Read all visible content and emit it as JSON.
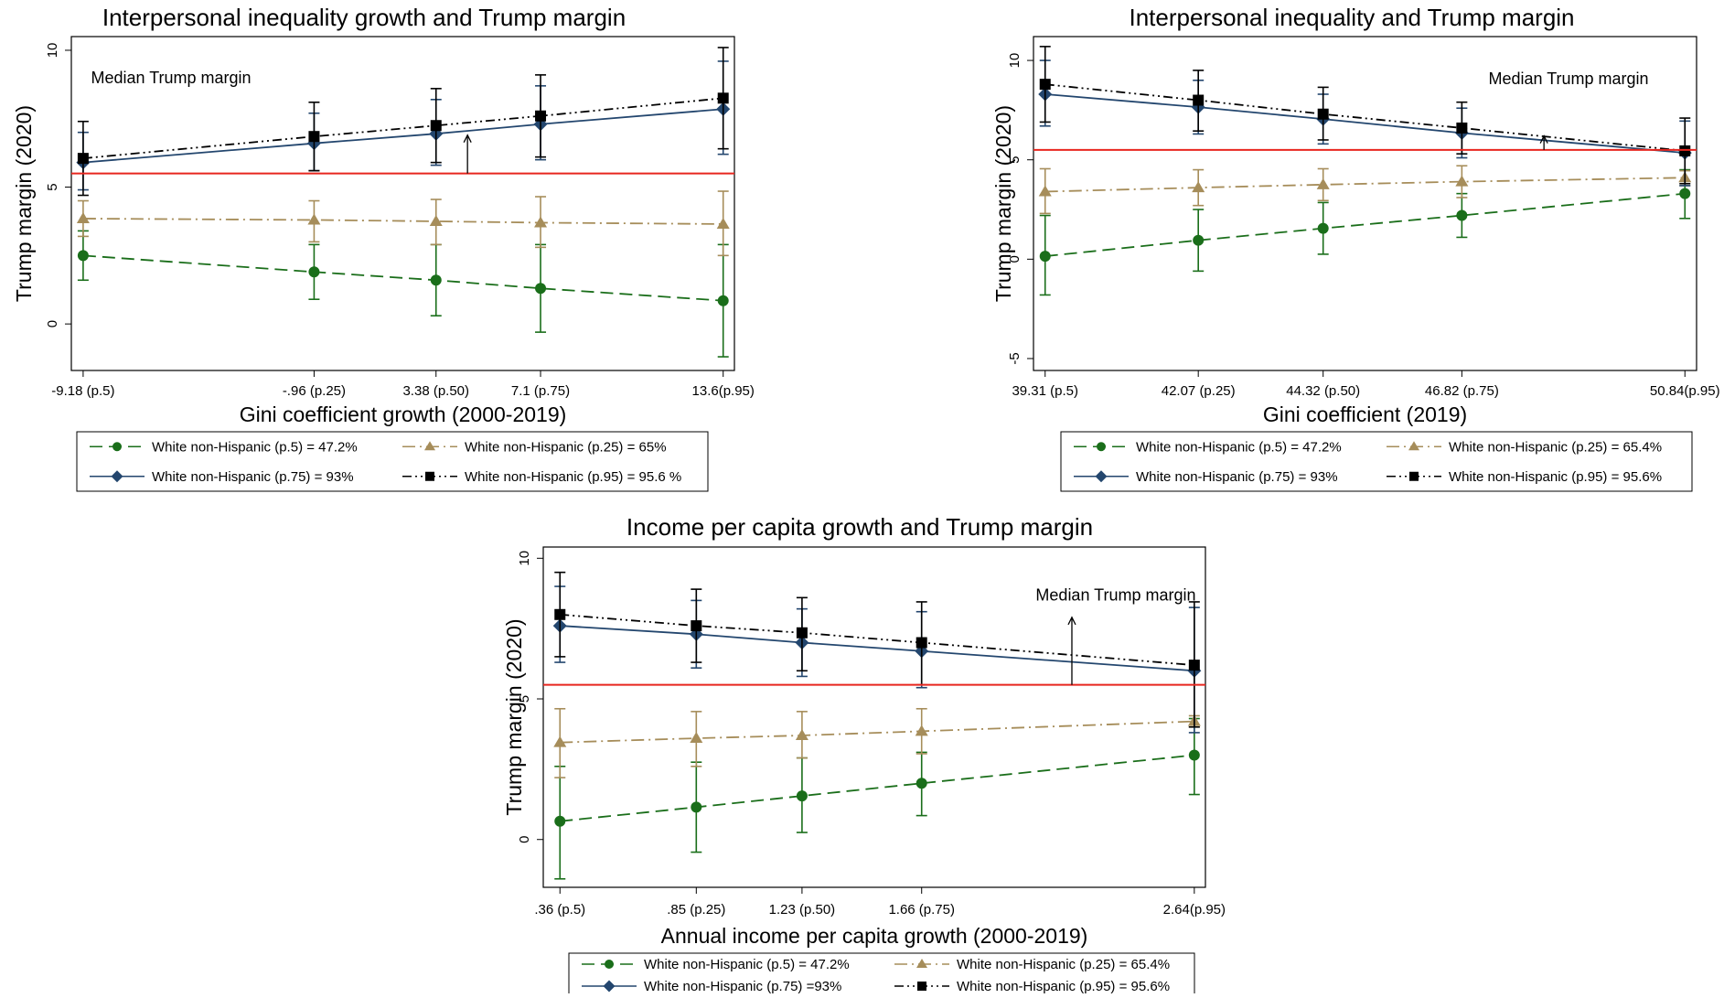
{
  "colors": {
    "green": "#1a6e1a",
    "tan": "#a68d5a",
    "blue": "#23466e",
    "black": "#000000",
    "median_line": "#e8261f"
  },
  "chart_data": [
    {
      "type": "line",
      "title": "Interpersonal inequality growth and Trump margin",
      "xlabel": "Gini coefficient growth (2000-2019)",
      "ylabel": "Trump margin (2020)",
      "x": [
        -9.18,
        -0.96,
        3.38,
        7.1,
        13.6
      ],
      "xtick_labels": [
        "-9.18 (p.5)",
        "-.96 (p.25)",
        "3.38 (p.50)",
        "7.1 (p.75)",
        "13.6(p.95)"
      ],
      "xlim": [
        -9.6,
        14.0
      ],
      "ylim": [
        -1.7,
        10.5
      ],
      "yticks": [
        0,
        5,
        10
      ],
      "ytick_labels": [
        "0",
        "5",
        "10"
      ],
      "median_line": 5.5,
      "annotation": "Median Trump margin",
      "grid": false,
      "legend_position": "bottom",
      "series": [
        {
          "name": "White non-Hispanic (p.5) = 47.2%",
          "values": [
            2.5,
            1.9,
            1.6,
            1.3,
            0.85
          ],
          "ci_low": [
            1.6,
            0.9,
            0.3,
            -0.3,
            -1.2
          ],
          "ci_high": [
            3.4,
            2.9,
            2.9,
            2.9,
            2.9
          ],
          "marker": "circle",
          "color": "#1a6e1a",
          "dash": "long"
        },
        {
          "name": "White non-Hispanic (p.25) = 65%",
          "values": [
            3.85,
            3.8,
            3.75,
            3.7,
            3.65
          ],
          "ci_low": [
            3.2,
            3.0,
            2.9,
            2.8,
            2.5
          ],
          "ci_high": [
            4.5,
            4.5,
            4.55,
            4.65,
            4.85
          ],
          "marker": "triangle",
          "color": "#a68d5a",
          "dash": "longdot"
        },
        {
          "name": "White non-Hispanic (p.75) = 93%",
          "values": [
            5.9,
            6.6,
            6.95,
            7.3,
            7.85
          ],
          "ci_low": [
            4.9,
            5.6,
            5.8,
            6.0,
            6.2
          ],
          "ci_high": [
            7.0,
            7.7,
            8.2,
            8.7,
            9.6
          ],
          "marker": "diamond",
          "color": "#23466e",
          "dash": "solid"
        },
        {
          "name": "White non-Hispanic (p.95) = 95.6 %",
          "values": [
            6.05,
            6.85,
            7.25,
            7.6,
            8.25
          ],
          "ci_low": [
            4.7,
            5.6,
            5.9,
            6.1,
            6.4
          ],
          "ci_high": [
            7.4,
            8.1,
            8.6,
            9.1,
            10.1
          ],
          "marker": "square",
          "color": "#000000",
          "dash": "dashdot"
        }
      ]
    },
    {
      "type": "line",
      "title": "Interpersonal inequality and Trump margin",
      "xlabel": "Gini coefficient (2019)",
      "ylabel": "Trump margin (2020)",
      "x": [
        39.31,
        42.07,
        44.32,
        46.82,
        50.84
      ],
      "xtick_labels": [
        "39.31 (p.5)",
        "42.07 (p.25)",
        "44.32 (p.50)",
        "46.82 (p.75)",
        "50.84(p.95)"
      ],
      "xlim": [
        39.1,
        51.05
      ],
      "ylim": [
        -5.6,
        11.2
      ],
      "yticks": [
        -5,
        0,
        5,
        10
      ],
      "ytick_labels": [
        "-5",
        "0",
        "5",
        "10"
      ],
      "median_line": 5.5,
      "annotation": "Median Trump margin",
      "grid": false,
      "legend_position": "bottom",
      "series": [
        {
          "name": "White non-Hispanic (p.5) = 47.2%",
          "values": [
            0.15,
            0.95,
            1.55,
            2.2,
            3.3
          ],
          "ci_low": [
            -1.8,
            -0.6,
            0.25,
            1.1,
            2.05
          ],
          "ci_high": [
            2.2,
            2.5,
            2.85,
            3.3,
            4.5
          ],
          "marker": "circle",
          "color": "#1a6e1a",
          "dash": "long"
        },
        {
          "name": "White non-Hispanic (p.25) = 65.4%",
          "values": [
            3.4,
            3.6,
            3.75,
            3.9,
            4.1
          ],
          "ci_low": [
            2.3,
            2.7,
            2.95,
            3.1,
            3.7
          ],
          "ci_high": [
            4.55,
            4.5,
            4.55,
            4.7,
            4.45
          ],
          "marker": "triangle",
          "color": "#a68d5a",
          "dash": "longdot"
        },
        {
          "name": "White non-Hispanic (p.75) = 93%",
          "values": [
            8.3,
            7.65,
            7.05,
            6.35,
            5.35
          ],
          "ci_low": [
            6.7,
            6.3,
            5.8,
            5.1,
            3.7
          ],
          "ci_high": [
            10.0,
            9.0,
            8.3,
            7.6,
            6.95
          ],
          "marker": "diamond",
          "color": "#23466e",
          "dash": "solid"
        },
        {
          "name": "White non-Hispanic (p.95) = 95.6%",
          "values": [
            8.8,
            8.0,
            7.3,
            6.6,
            5.45
          ],
          "ci_low": [
            6.9,
            6.45,
            6.0,
            5.3,
            3.8
          ],
          "ci_high": [
            10.7,
            9.5,
            8.65,
            7.9,
            7.1
          ],
          "marker": "square",
          "color": "#000000",
          "dash": "dashdot"
        }
      ]
    },
    {
      "type": "line",
      "title": "Income per capita growth and Trump margin",
      "xlabel": "Annual income per capita growth (2000-2019)",
      "ylabel": "Trump margin (2020)",
      "x": [
        0.36,
        0.85,
        1.23,
        1.66,
        2.64
      ],
      "xtick_labels": [
        ".36 (p.5)",
        ".85 (p.25)",
        "1.23 (p.50)",
        "1.66 (p.75)",
        "2.64(p.95)"
      ],
      "xlim": [
        0.3,
        2.68
      ],
      "ylim": [
        -1.7,
        10.4
      ],
      "yticks": [
        0,
        5,
        10
      ],
      "ytick_labels": [
        "0",
        "5",
        "10"
      ],
      "median_line": 5.5,
      "annotation": "Median Trump margin",
      "grid": false,
      "legend_position": "bottom",
      "series": [
        {
          "name": "White non-Hispanic (p.5) = 47.2%",
          "values": [
            0.65,
            1.15,
            1.55,
            2.0,
            3.0
          ],
          "ci_low": [
            -1.4,
            -0.45,
            0.25,
            0.85,
            1.6
          ],
          "ci_high": [
            2.6,
            2.75,
            2.9,
            3.1,
            4.3
          ],
          "marker": "circle",
          "color": "#1a6e1a",
          "dash": "long"
        },
        {
          "name": "White non-Hispanic (p.25) = 65.4%",
          "values": [
            3.45,
            3.6,
            3.7,
            3.85,
            4.2
          ],
          "ci_low": [
            2.2,
            2.6,
            2.9,
            3.05,
            4.0
          ],
          "ci_high": [
            4.65,
            4.55,
            4.55,
            4.65,
            4.4
          ],
          "marker": "triangle",
          "color": "#a68d5a",
          "dash": "longdot"
        },
        {
          "name": "White non-Hispanic (p.75) =93%",
          "values": [
            7.6,
            7.3,
            7.0,
            6.7,
            6.0
          ],
          "ci_low": [
            6.3,
            6.1,
            5.8,
            5.4,
            3.8
          ],
          "ci_high": [
            9.0,
            8.5,
            8.2,
            8.1,
            8.25
          ],
          "marker": "diamond",
          "color": "#23466e",
          "dash": "solid"
        },
        {
          "name": "White non-Hispanic (p.95) = 95.6%",
          "values": [
            8.0,
            7.6,
            7.35,
            7.0,
            6.2
          ],
          "ci_low": [
            6.5,
            6.3,
            6.0,
            5.5,
            4.0
          ],
          "ci_high": [
            9.5,
            8.9,
            8.6,
            8.45,
            8.45
          ],
          "marker": "square",
          "color": "#000000",
          "dash": "dashdot"
        }
      ]
    }
  ]
}
